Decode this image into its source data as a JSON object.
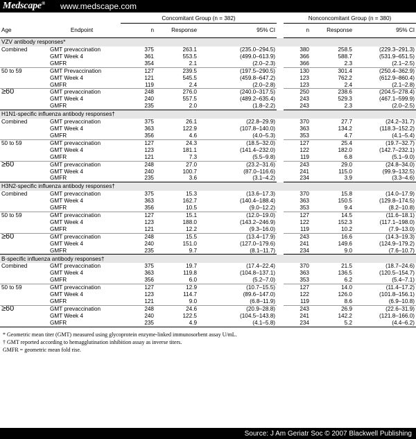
{
  "header": {
    "logo": "Medscape",
    "logo_mark": "®",
    "site": "www.medscape.com"
  },
  "table": {
    "group_headers": {
      "concomitant": "Concomitant Group (n = 382)",
      "nonconcomitant": "Nonconcomitant Group (n = 380)"
    },
    "column_headers": {
      "age": "Age",
      "endpoint": "Endpoint",
      "n": "n",
      "response": "Response",
      "ci": "95% CI"
    },
    "sections": [
      {
        "title": "VZV antibody responses*",
        "groups": [
          {
            "age": "Combined",
            "rows": [
              [
                "GMT prevaccination",
                "375",
                "263.1",
                "(235.0–294.5)",
                "380",
                "258.5",
                "(229.3–291.3)"
              ],
              [
                "GMT Week 4",
                "361",
                "553.5",
                "(499.0–613.9)",
                "366",
                "588.7",
                "(531.9–651.5)"
              ],
              [
                "GMFR",
                "354",
                "2.1",
                "(2.0–2.3)",
                "366",
                "2.3",
                "(2.1–2.5)"
              ]
            ]
          },
          {
            "age": "50 to 59",
            "rows": [
              [
                "GMT Prevaccination",
                "127",
                "239.5",
                "(197.5–290.5)",
                "130",
                "301.4",
                "(250.4–362.9)"
              ],
              [
                "GMT Week 4",
                "121",
                "545.5",
                "(459.8–647.2)",
                "123",
                "762.2",
                "(612.9–860.4)"
              ],
              [
                "GMFR",
                "119",
                "2.4",
                "(2.0–2.8)",
                "123",
                "2.4",
                "(2.1–2.8)"
              ]
            ]
          },
          {
            "age": "≥60",
            "rows": [
              [
                "GMT prevaccination",
                "248",
                "276.0",
                "(240.0–317.5)",
                "250",
                "238.6",
                "(204.5–278.4)"
              ],
              [
                "GMT Week 4",
                "240",
                "557.5",
                "(489.2–635.4)",
                "243",
                "529.3",
                "(467.1–599.9)"
              ],
              [
                "GMFR",
                "235",
                "2.0",
                "(1.8–2.2)",
                "243",
                "2.3",
                "(2.0–2.5)"
              ]
            ]
          }
        ]
      },
      {
        "title": "H1N1-specific influenza antibody responses†",
        "groups": [
          {
            "age": "Combined",
            "rows": [
              [
                "GMT prevaccination",
                "375",
                "26.1",
                "(22.8–29.9)",
                "370",
                "27.7",
                "(24.2–31.7)"
              ],
              [
                "GMT Week 4",
                "363",
                "122.9",
                "(107.8–140.0)",
                "363",
                "134.2",
                "(118.3–152.2)"
              ],
              [
                "GMFR",
                "356",
                "4.6",
                "(4.0–5.3)",
                "353",
                "4.7",
                "(4.1–5.4)"
              ]
            ]
          },
          {
            "age": "50 to 59",
            "rows": [
              [
                "GMT prevaccination",
                "127",
                "24.3",
                "(18.5–32.0)",
                "127",
                "25.4",
                "(19.7–32.7)"
              ],
              [
                "GMT Week 4",
                "123",
                "181.1",
                "(141.4–232.0)",
                "122",
                "182.0",
                "(142.7–232.1)"
              ],
              [
                "GMFR",
                "121",
                "7.3",
                "(5.5–9.8)",
                "119",
                "6.8",
                "(5.1–9.0)"
              ]
            ]
          },
          {
            "age": "≥60",
            "rows": [
              [
                "GMT prevaccination",
                "248",
                "27.0",
                "(23.2–31.6)",
                "243",
                "29.0",
                "(24.8–34.0)"
              ],
              [
                "GMT Week 4",
                "240",
                "100.7",
                "(87.0–116.6)",
                "241",
                "115.0",
                "(99.9–132.5)"
              ],
              [
                "GMFR",
                "235",
                "3.6",
                "(3.1–4.2)",
                "234",
                "3.9",
                "(3.3–4.6)"
              ]
            ]
          }
        ]
      },
      {
        "title": "H3N2-specific influenza antibody responses†",
        "groups": [
          {
            "age": "Combined",
            "rows": [
              [
                "GMT prevaccination",
                "375",
                "15.3",
                "(13.6–17.3)",
                "370",
                "15.8",
                "(14.0–17.9)"
              ],
              [
                "GMT Week 4",
                "363",
                "162.7",
                "(140.4–188.4)",
                "363",
                "150.5",
                "(129.8–174.5)"
              ],
              [
                "GMFR",
                "356",
                "10.5",
                "(9.0–12.2)",
                "353",
                "9.4",
                "(8.2–10.8)"
              ]
            ]
          },
          {
            "age": "50 to 59",
            "rows": [
              [
                "GMT prevaccination",
                "127",
                "15.1",
                "(12.0–19.0)",
                "127",
                "14.5",
                "(11.6–18.1)"
              ],
              [
                "GMT Week 4",
                "123",
                "188.0",
                "(143.2–246.9)",
                "122",
                "152.3",
                "(117.1–198.0)"
              ],
              [
                "GMFR",
                "121",
                "12.2",
                "(9.3–16.0)",
                "119",
                "10.2",
                "(7.9–13.0)"
              ]
            ]
          },
          {
            "age": "≥60",
            "rows": [
              [
                "GMT prevaccination",
                "248",
                "15.5",
                "(13.4–17.9)",
                "243",
                "16.6",
                "(14.3–19.3)"
              ],
              [
                "GMT Week 4",
                "240",
                "151.0",
                "(127.0–179.6)",
                "241",
                "149.6",
                "(124.9–179.2)"
              ],
              [
                "GMFR",
                "235",
                "9.7",
                "(8.1–11.7)",
                "234",
                "9.0",
                "(7.6–10.7)"
              ]
            ]
          }
        ]
      },
      {
        "title": "B-specific influenza antibody responses†",
        "groups": [
          {
            "age": "Combined",
            "rows": [
              [
                "GMT prevaccination",
                "375",
                "19.7",
                "(17.4–22.4)",
                "370",
                "21.5",
                "(18.7–24.6)"
              ],
              [
                "GMT Week 4",
                "363",
                "119.8",
                "(104.8–137.1)",
                "363",
                "136.5",
                "(120.5–154.7)"
              ],
              [
                "GMFR",
                "356",
                "6.0",
                "(5.2–7.0)",
                "353",
                "6.2",
                "(5.4–7.1)"
              ]
            ]
          },
          {
            "age": "50 to 59",
            "rows": [
              [
                "GMT prevaccination",
                "127",
                "12.9",
                "(10.7–15.5)",
                "127",
                "14.0",
                "(11.4–17.2)"
              ],
              [
                "GMT Week 4",
                "123",
                "114.7",
                "(89.6–147.0)",
                "122",
                "126.0",
                "(101.8–156.1)"
              ],
              [
                "GMFR",
                "121",
                "9.0",
                "(6.8–11.9)",
                "119",
                "8.6",
                "(6.9–10.8)"
              ]
            ]
          },
          {
            "age": "≥60",
            "rows": [
              [
                "GMT prevaccination",
                "248",
                "24.6",
                "(20.9–28.8)",
                "243",
                "26.9",
                "(22.6–31.9)"
              ],
              [
                "GMT Week 4",
                "240",
                "122.5",
                "(104.5–143.8)",
                "241",
                "142.2",
                "(121.8–166.0)"
              ],
              [
                "GMFR",
                "235",
                "4.9",
                "(4.1–5.8)",
                "234",
                "5.2",
                "(4.4–6.2)"
              ]
            ]
          }
        ]
      }
    ]
  },
  "footnotes": [
    "* Geometric mean titer (GMT) measured using glycoprotein enzyme-linked immunosorbent assay U/mL.",
    "† GMT reported according to hemagglutination inhibition assay as inverse titers.",
    "GMFR = geometric mean fold rise."
  ],
  "source": "Source: J Am Geriatr Soc © 2007 Blackwell Publishing"
}
